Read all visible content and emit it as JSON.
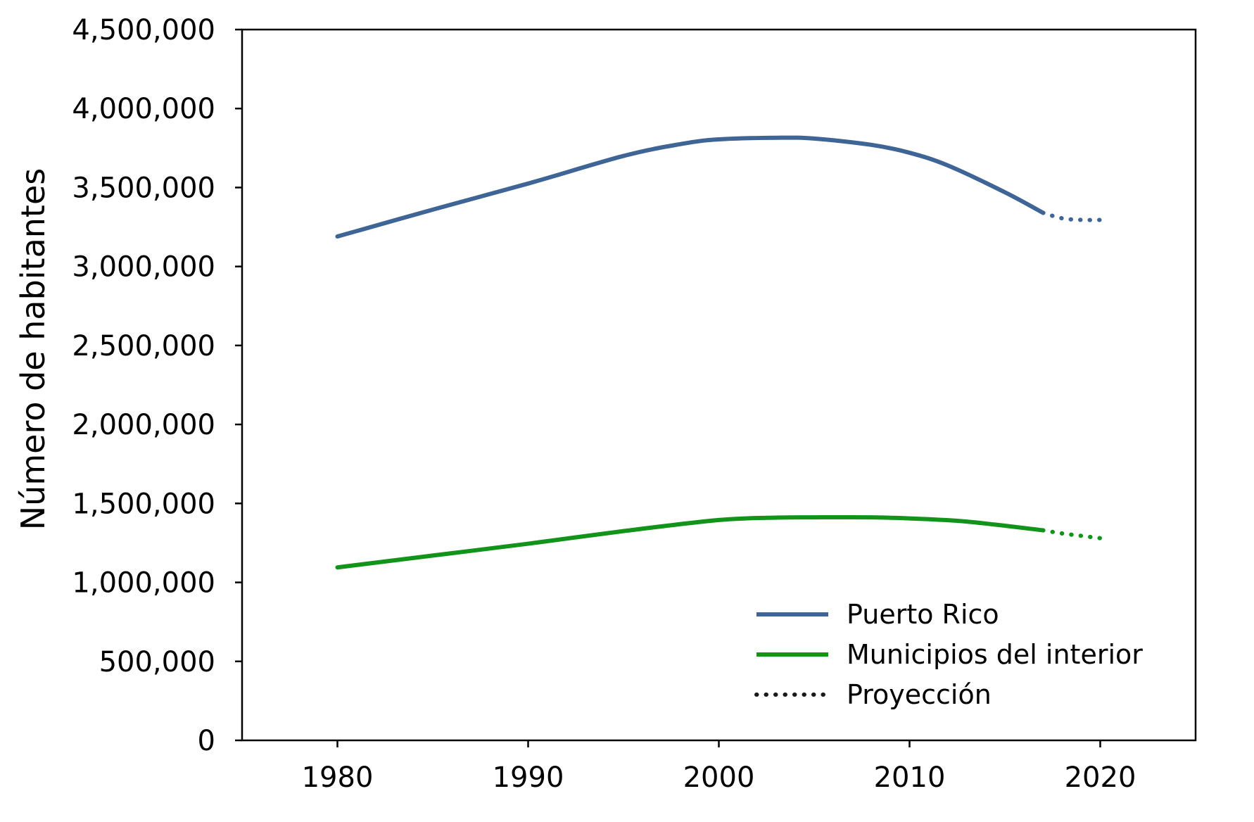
{
  "chart_data": {
    "type": "line",
    "title": "",
    "xlabel": "",
    "ylabel": "Número de habitantes",
    "xlim": [
      1975,
      2025
    ],
    "ylim": [
      0,
      4500000
    ],
    "grid": false,
    "legend_position": "bottom-right",
    "x_ticks": [
      1980,
      1990,
      2000,
      2010,
      2020
    ],
    "x_tick_labels": [
      "1980",
      "1990",
      "2000",
      "2010",
      "2020"
    ],
    "y_ticks": [
      0,
      500000,
      1000000,
      1500000,
      2000000,
      2500000,
      3000000,
      3500000,
      4000000,
      4500000
    ],
    "y_tick_labels": [
      "0",
      "500,000",
      "1,000,000",
      "1,500,000",
      "2,000,000",
      "2,500,000",
      "3,000,000",
      "3,500,000",
      "4,000,000",
      "4,500,000"
    ],
    "series": [
      {
        "name": "Puerto Rico",
        "color": "#3e6596",
        "x": [
          1980,
          1985,
          1990,
          1995,
          1998,
          2000,
          2003,
          2005,
          2008,
          2010,
          2012,
          2015,
          2017
        ],
        "values": [
          3190000,
          3360000,
          3525000,
          3700000,
          3775000,
          3805000,
          3815000,
          3810000,
          3770000,
          3720000,
          3640000,
          3470000,
          3340000
        ],
        "projection": {
          "x": [
            2017,
            2018,
            2019,
            2020
          ],
          "values": [
            3340000,
            3305000,
            3295000,
            3295000
          ]
        }
      },
      {
        "name": "Municipios del interior",
        "color": "#12931a",
        "x": [
          1980,
          1985,
          1990,
          1995,
          2000,
          2003,
          2005,
          2008,
          2010,
          2013,
          2017
        ],
        "values": [
          1095000,
          1170000,
          1245000,
          1325000,
          1395000,
          1410000,
          1412000,
          1412000,
          1405000,
          1385000,
          1330000
        ],
        "projection": {
          "x": [
            2017,
            2018,
            2019,
            2020
          ],
          "values": [
            1330000,
            1310000,
            1295000,
            1280000
          ]
        }
      }
    ],
    "legend": [
      {
        "label": "Puerto Rico",
        "style": "solid",
        "color": "#3e6596"
      },
      {
        "label": "Municipios del interior",
        "style": "solid",
        "color": "#12931a"
      },
      {
        "label": "Proyección",
        "style": "dotted",
        "color": "#1a1a1a"
      }
    ]
  }
}
